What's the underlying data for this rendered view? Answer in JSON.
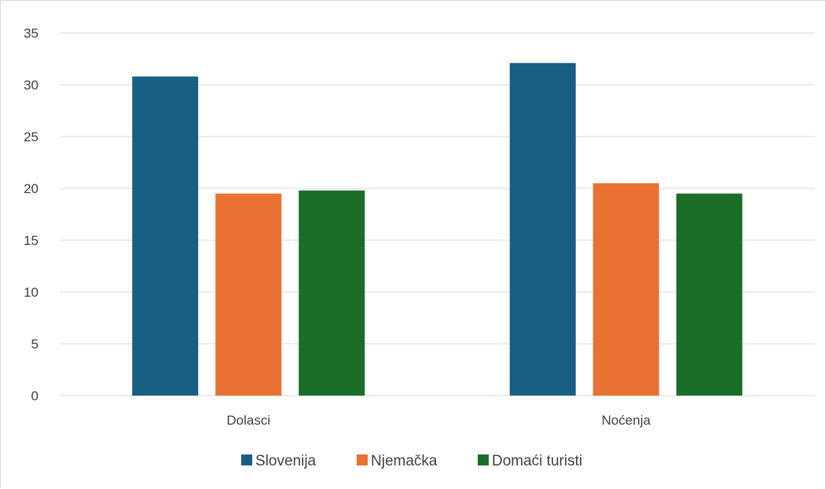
{
  "chart_data": {
    "type": "bar",
    "categories": [
      "Dolasci",
      "Noćenja"
    ],
    "series": [
      {
        "name": "Slovenija",
        "color": "#185f83",
        "values": [
          30.8,
          32.1
        ]
      },
      {
        "name": "Njemačka",
        "color": "#e97132",
        "values": [
          19.5,
          20.5
        ]
      },
      {
        "name": "Domaći turisti",
        "color": "#1b6e27",
        "values": [
          19.8,
          19.5
        ]
      }
    ],
    "yticks": [
      "0",
      "5",
      "10",
      "15",
      "20",
      "25",
      "30",
      "35"
    ],
    "ylim": [
      0,
      35
    ],
    "grid": true,
    "legend_position": "bottom"
  }
}
